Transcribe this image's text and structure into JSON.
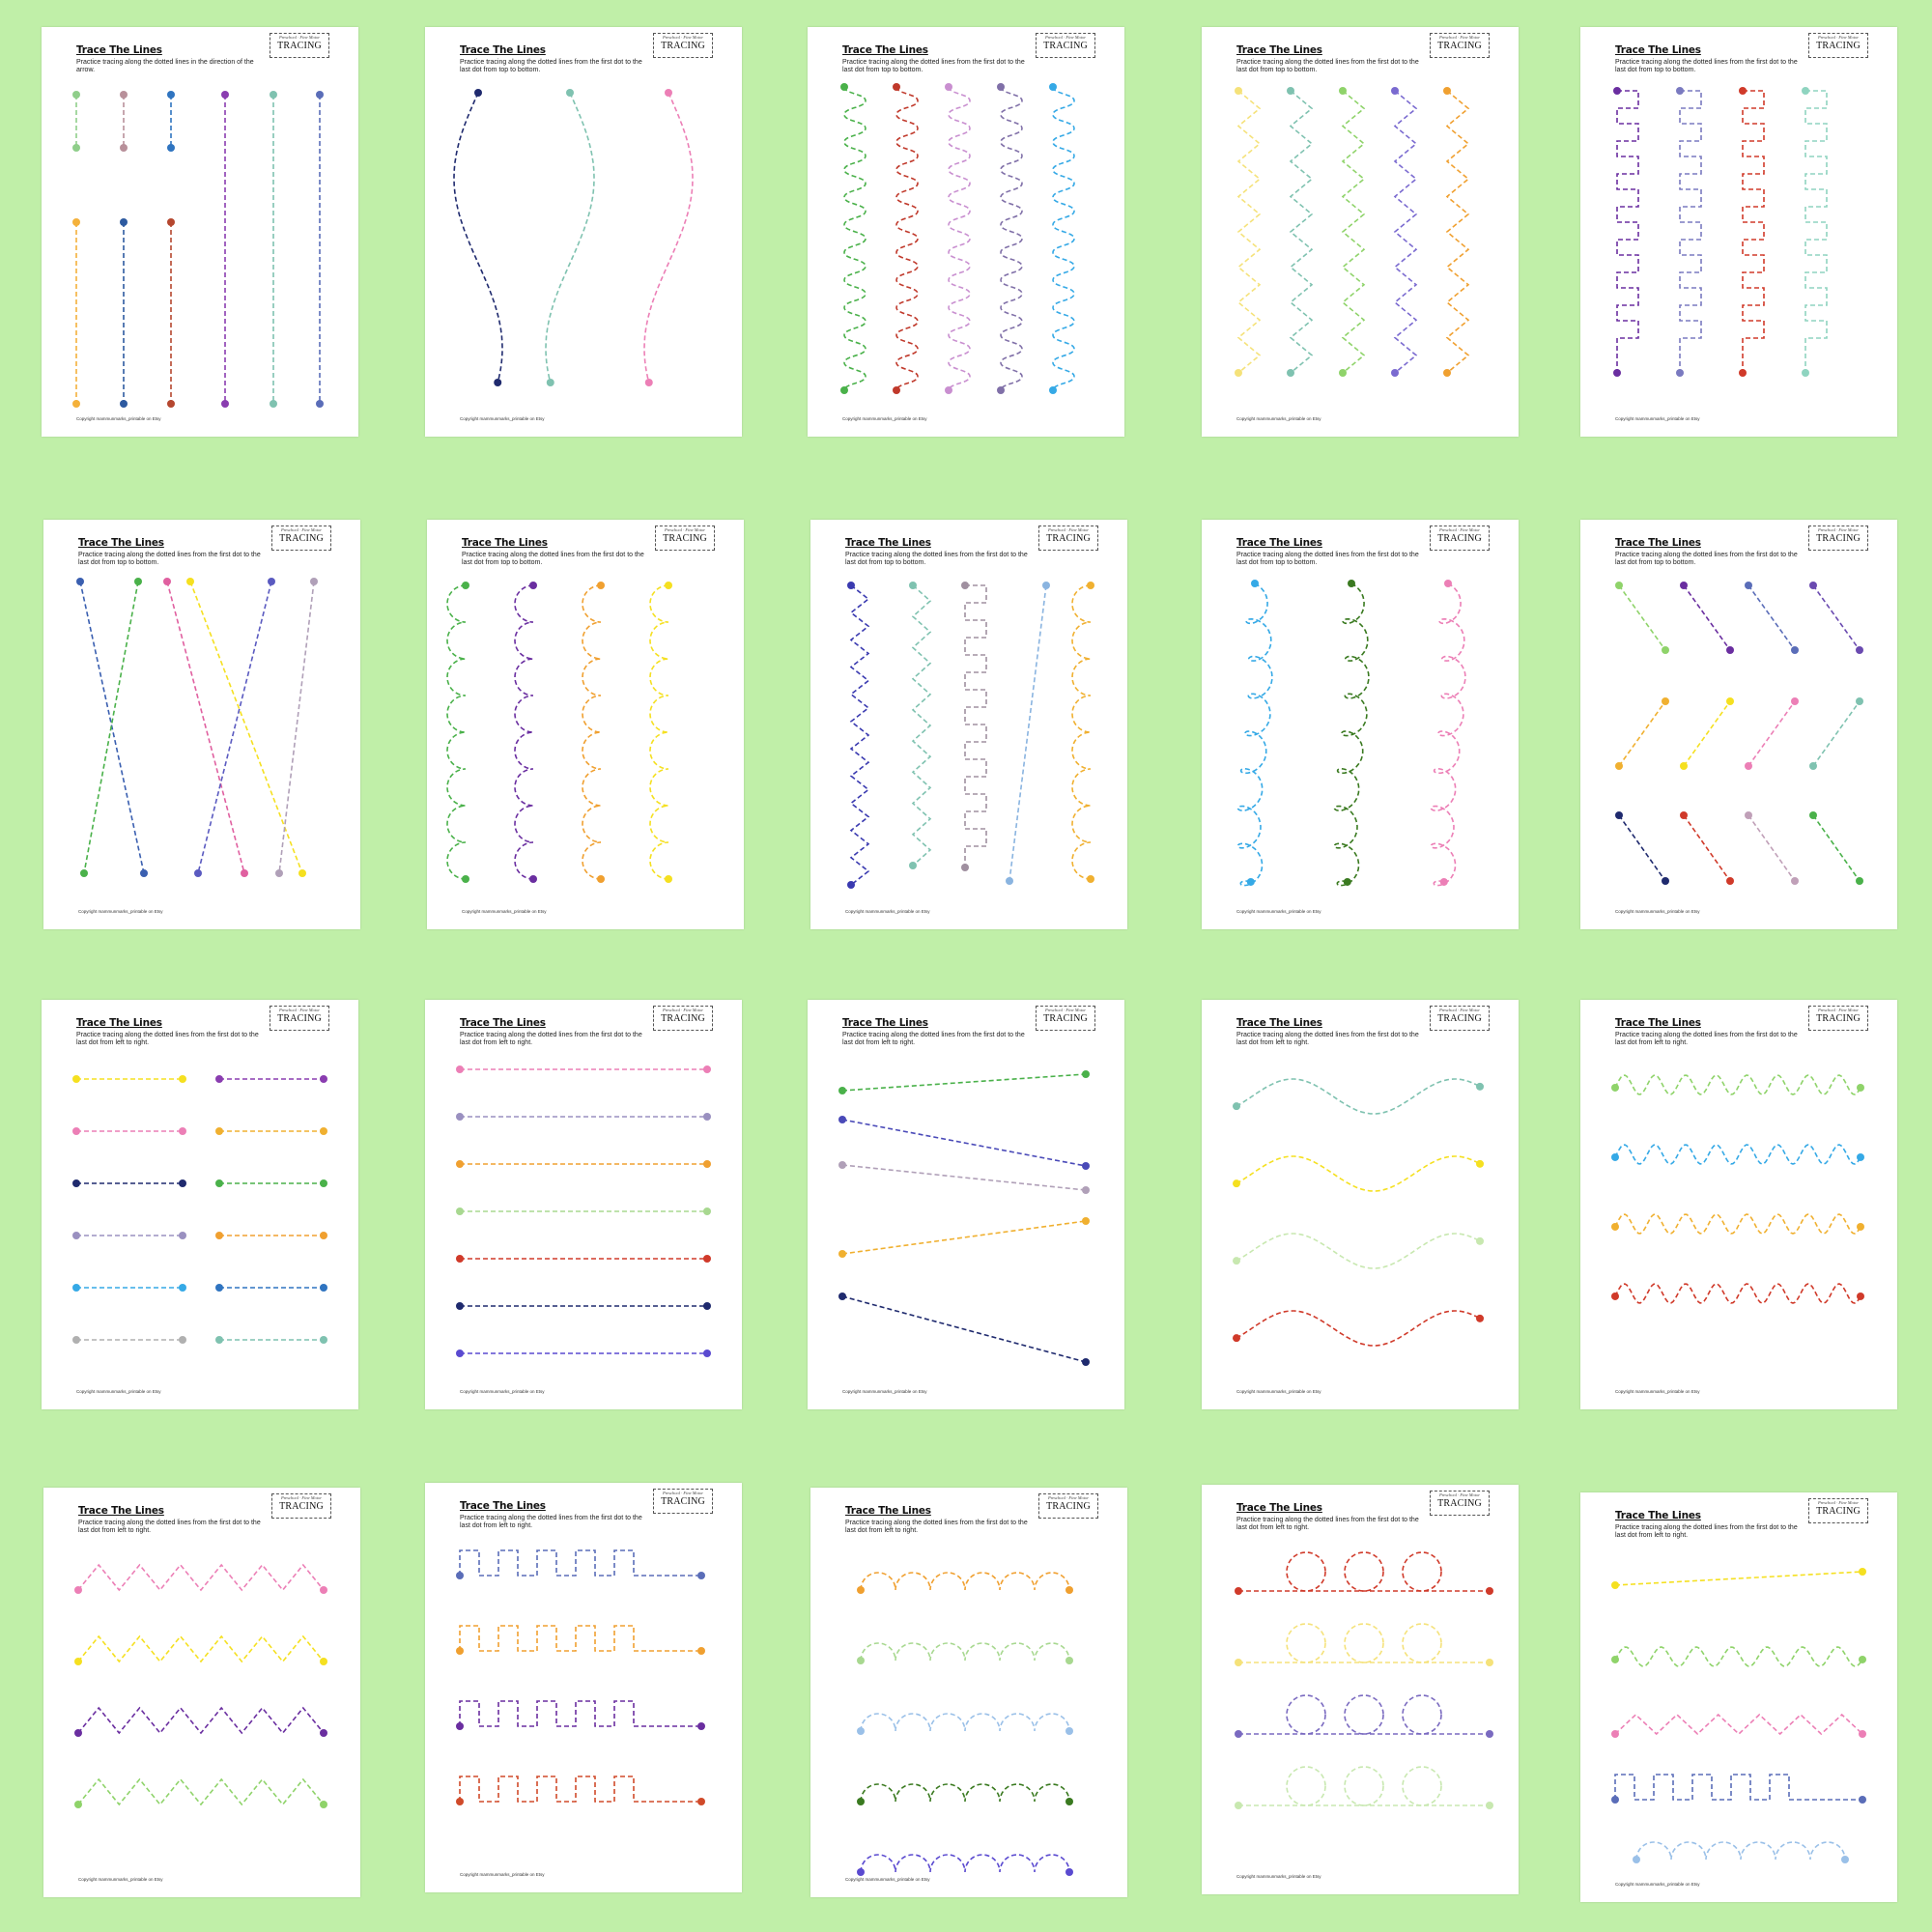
{
  "sheet_text": {
    "title": "Trace The Lines",
    "badge_sub": "Preschool · Fine Motor",
    "badge_main": "TRACING",
    "copyright": "Copyright mammunmarks_printable on Etsy"
  },
  "worksheets": [
    {
      "instructions": "Practice tracing along the dotted lines in the direction of the arrow.",
      "pattern": "vertical-straight",
      "colors": [
        "#8fce8a",
        "#b8909a",
        "#2f74c0",
        "#8a3db0",
        "#7fc2b0",
        "#5a6db8",
        "#f4b13b",
        "#2d5aa0",
        "#b5472f"
      ]
    },
    {
      "instructions": "Practice tracing along the dotted lines from the first dot to the last dot from top to bottom.",
      "pattern": "vertical-wave",
      "colors": [
        "#1f2a6e",
        "#7fc2b0",
        "#ec7fb6"
      ]
    },
    {
      "instructions": "Practice tracing along the dotted lines from the first dot to the last dot from top to bottom.",
      "pattern": "vertical-zigzag-small",
      "colors": [
        "#4ab14a",
        "#c0392b",
        "#c98fd0",
        "#8070a8",
        "#35a9e6"
      ]
    },
    {
      "instructions": "Practice tracing along the dotted lines from the first dot to the last dot from top to bottom.",
      "pattern": "vertical-zigzag",
      "colors": [
        "#f5e27a",
        "#7fc2b0",
        "#8fd36a",
        "#7a6ad0",
        "#f0a030"
      ]
    },
    {
      "instructions": "Practice tracing along the dotted lines from the first dot to the last dot from top to bottom.",
      "pattern": "vertical-square",
      "colors": [
        "#6a2ea0",
        "#7a7ac0",
        "#d03a2a",
        "#8fd4c0"
      ]
    },
    {
      "instructions": "Practice tracing along the dotted lines from the first dot to the last dot from top to bottom.",
      "pattern": "crossing-diagonals",
      "colors": [
        "#3a5fb0",
        "#4ab14a",
        "#e060a0",
        "#f5e020",
        "#5a5ac0",
        "#b0a0b8"
      ]
    },
    {
      "instructions": "Practice tracing along the dotted lines from the first dot to the last dot from top to bottom.",
      "pattern": "vertical-scallop",
      "colors": [
        "#4ab14a",
        "#6a2ea0",
        "#f0a030",
        "#f5e020"
      ]
    },
    {
      "instructions": "Practice tracing along the dotted lines from the first dot to the last dot from top to bottom.",
      "pattern": "vertical-mixed",
      "colors": [
        "#3a3ab0",
        "#7fc2b0",
        "#a090a0",
        "#8ab4e0",
        "#f0b030"
      ]
    },
    {
      "instructions": "Practice tracing along the dotted lines from the first dot to the last dot from top to bottom.",
      "pattern": "vertical-loops",
      "colors": [
        "#35a9e6",
        "#3a7a20",
        "#ec7fb6"
      ]
    },
    {
      "instructions": "Practice tracing along the dotted lines from the first dot to the last dot from top to bottom.",
      "pattern": "short-diagonals",
      "colors": [
        "#8fd36a",
        "#6a2ea0",
        "#5a6db8",
        "#6a4ab0",
        "#f0b030",
        "#f5e020",
        "#ec7fb6",
        "#7fc2b0",
        "#1f2a6e",
        "#d03a2a",
        "#c0a0b8",
        "#4ab14a"
      ]
    },
    {
      "instructions": "Practice tracing along the dotted lines from the first dot to the last dot from left to right.",
      "pattern": "short-horizontal",
      "colors": [
        "#f5e020",
        "#8a3db0",
        "#ec7fb6",
        "#f0b030",
        "#1f2a6e",
        "#4ab14a",
        "#9a90c0",
        "#f0a030",
        "#35a9e6",
        "#2f74c0",
        "#b0b0b0",
        "#7fc2b0"
      ]
    },
    {
      "instructions": "Practice tracing along the dotted lines from the first dot to the last dot from left to right.",
      "pattern": "long-horizontal",
      "colors": [
        "#ec7fb6",
        "#9a90c0",
        "#f0a030",
        "#a8d890",
        "#d03a2a",
        "#1f2a6e",
        "#5a4ad0"
      ]
    },
    {
      "instructions": "Practice tracing along the dotted lines from the first dot to the last dot from left to right.",
      "pattern": "slanted-lines",
      "colors": [
        "#4ab14a",
        "#4a4ab8",
        "#b0a0b8",
        "#f0b030",
        "#1f2a6e"
      ]
    },
    {
      "instructions": "Practice tracing along the dotted lines from the first dot to the last dot from left to right.",
      "pattern": "horizontal-wave",
      "colors": [
        "#7fc2b0",
        "#f5e020",
        "#c8e8b0",
        "#d03a2a"
      ]
    },
    {
      "instructions": "Practice tracing along the dotted lines from the first dot to the last dot from left to right.",
      "pattern": "horizontal-wave-small",
      "colors": [
        "#8fd36a",
        "#35a9e6",
        "#f0b030",
        "#d03a2a"
      ]
    },
    {
      "instructions": "Practice tracing along the dotted lines from the first dot to the last dot from left to right.",
      "pattern": "horizontal-zigzag",
      "colors": [
        "#ec7fb6",
        "#f5e020",
        "#6a2ea0",
        "#8fd36a"
      ]
    },
    {
      "instructions": "Practice tracing along the dotted lines from the first dot to the last dot from left to right.",
      "pattern": "horizontal-square",
      "colors": [
        "#5a6db8",
        "#f0a030",
        "#6a2ea0",
        "#d04a2a"
      ]
    },
    {
      "instructions": "Practice tracing along the dotted lines from the first dot to the last dot from left to right.",
      "pattern": "horizontal-arcs",
      "colors": [
        "#f0a030",
        "#a8d890",
        "#9ac0e8",
        "#3a7a20",
        "#5a4ad0"
      ]
    },
    {
      "instructions": "Practice tracing along the dotted lines from the first dot to the last dot from left to right.",
      "pattern": "horizontal-circles",
      "colors": [
        "#d03a2a",
        "#f5e27a",
        "#7a6ac0",
        "#c8e8b0"
      ]
    },
    {
      "instructions": "Practice tracing along the dotted lines from the first dot to the last dot from left to right.",
      "pattern": "horizontal-mixed",
      "colors": [
        "#f5e020",
        "#8fd36a",
        "#ec7fb6",
        "#5a6db8",
        "#9ac0e8"
      ]
    }
  ]
}
